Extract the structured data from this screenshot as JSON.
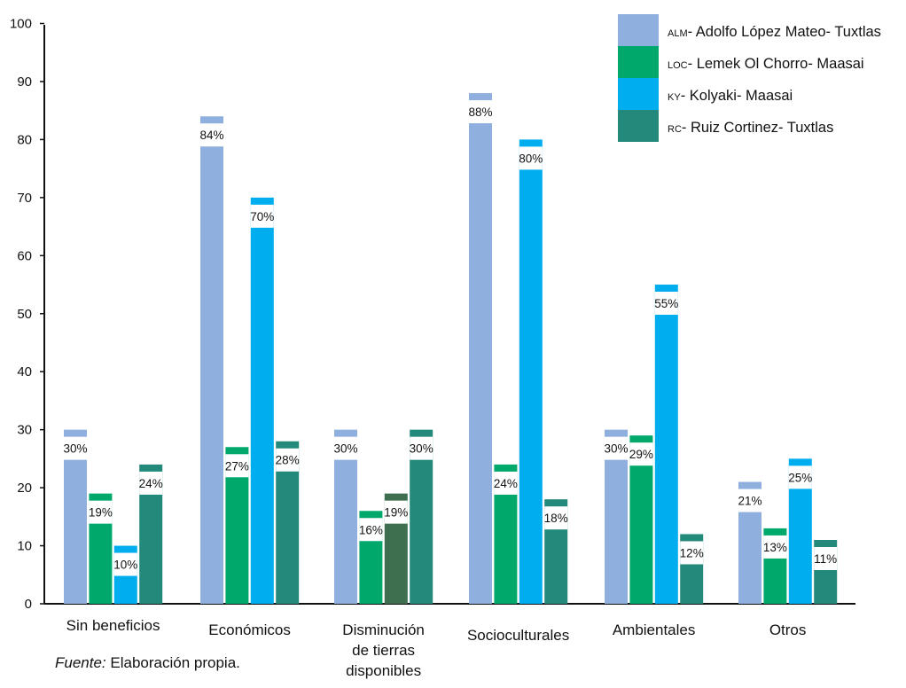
{
  "chart_data": {
    "type": "bar",
    "categories": [
      [
        "Sin beneficios"
      ],
      [
        "Económicos"
      ],
      [
        "Disminución",
        "de tierras",
        "disponibles"
      ],
      [
        "Socioculturales"
      ],
      [
        "Ambientales"
      ],
      [
        "Otros"
      ]
    ],
    "series": [
      {
        "abbr": "ALM",
        "name": "Adolfo López Mateo- Tuxtlas",
        "color": "#8fb0de",
        "values": [
          30,
          84,
          30,
          88,
          30,
          21
        ]
      },
      {
        "abbr": "LOC",
        "name": "Lemek Ol Chorro- Maasai",
        "color": "#00a86b",
        "values": [
          19,
          27,
          16,
          24,
          29,
          13
        ]
      },
      {
        "abbr": "KY",
        "name": "Kolyaki- Maasai",
        "color": "#00aeef",
        "values": [
          10,
          70,
          null,
          80,
          55,
          25
        ]
      },
      {
        "abbr": "RC",
        "name": "Ruiz Cortinez- Tuxtlas",
        "color": "#23897b",
        "values": [
          24,
          28,
          30,
          18,
          12,
          11
        ]
      }
    ],
    "extra_bars": [
      {
        "category_index": 2,
        "slot": 2,
        "value": 19,
        "color": "#3e7050"
      }
    ],
    "value_suffix": "%",
    "ylim": [
      0,
      100
    ],
    "yticks": [
      0,
      10,
      20,
      30,
      40,
      50,
      60,
      70,
      80,
      90,
      100
    ],
    "legend_position": "top-right",
    "grid": false
  },
  "source": {
    "label": "Fuente:",
    "text": "Elaboración propia."
  }
}
